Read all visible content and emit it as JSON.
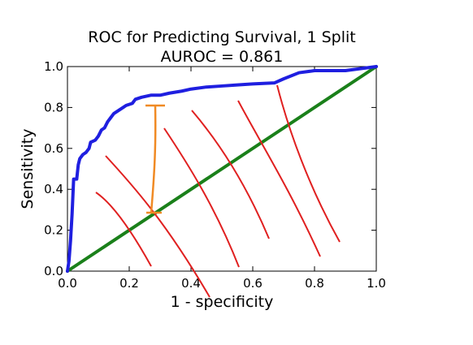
{
  "chart_data": {
    "type": "line",
    "title": "ROC for Predicting Survival, 1 Split",
    "subtitle": "AUROC = 0.861",
    "xlabel": "1 - specificity",
    "ylabel": "Sensitivity",
    "xlim": [
      0.0,
      1.0
    ],
    "ylim": [
      0.0,
      1.0
    ],
    "xticks": [
      "0.0",
      "0.2",
      "0.4",
      "0.6",
      "0.8",
      "1.0"
    ],
    "yticks": [
      "0.0",
      "0.2",
      "0.4",
      "0.6",
      "0.8",
      "1.0"
    ],
    "grid": false,
    "colors": {
      "roc": "#1f1fe0",
      "diagonal": "#1a801a",
      "annotation_red": "#e02020",
      "annotation_orange": "#f08a24"
    },
    "series": [
      {
        "values": [
          [
            0.0,
            0.0
          ],
          [
            0.005,
            0.05
          ],
          [
            0.01,
            0.15
          ],
          [
            0.015,
            0.28
          ],
          [
            0.02,
            0.45
          ],
          [
            0.03,
            0.45
          ],
          [
            0.035,
            0.52
          ],
          [
            0.04,
            0.55
          ],
          [
            0.05,
            0.57
          ],
          [
            0.06,
            0.58
          ],
          [
            0.07,
            0.6
          ],
          [
            0.075,
            0.63
          ],
          [
            0.09,
            0.64
          ],
          [
            0.1,
            0.66
          ],
          [
            0.11,
            0.69
          ],
          [
            0.12,
            0.7
          ],
          [
            0.13,
            0.73
          ],
          [
            0.14,
            0.75
          ],
          [
            0.15,
            0.77
          ],
          [
            0.16,
            0.78
          ],
          [
            0.17,
            0.79
          ],
          [
            0.18,
            0.8
          ],
          [
            0.19,
            0.81
          ],
          [
            0.21,
            0.82
          ],
          [
            0.22,
            0.84
          ],
          [
            0.24,
            0.85
          ],
          [
            0.27,
            0.86
          ],
          [
            0.3,
            0.86
          ],
          [
            0.33,
            0.87
          ],
          [
            0.37,
            0.88
          ],
          [
            0.4,
            0.89
          ],
          [
            0.45,
            0.9
          ],
          [
            0.5,
            0.905
          ],
          [
            0.55,
            0.91
          ],
          [
            0.6,
            0.915
          ],
          [
            0.67,
            0.92
          ],
          [
            0.7,
            0.94
          ],
          [
            0.75,
            0.97
          ],
          [
            0.8,
            0.98
          ],
          [
            0.9,
            0.98
          ],
          [
            0.95,
            0.99
          ],
          [
            1.0,
            1.0
          ]
        ]
      },
      {
        "values": [
          [
            0.0,
            0.0
          ],
          [
            1.0,
            1.0
          ]
        ]
      }
    ]
  }
}
